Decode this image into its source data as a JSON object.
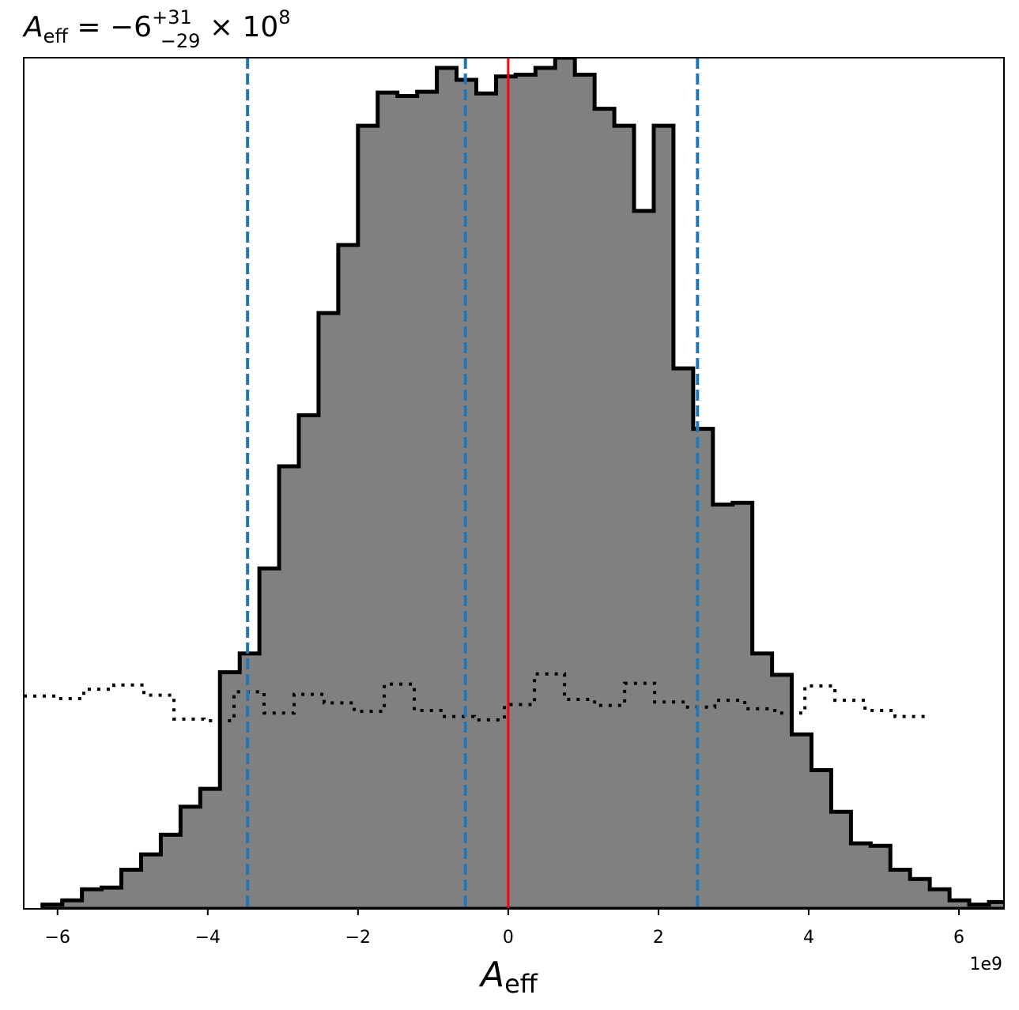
{
  "chart_data": {
    "type": "histogram",
    "title": {
      "base": "A",
      "base_sub": "eff",
      "equals": " = −6",
      "sup": "+31",
      "sub": "−29",
      "times": " × 10",
      "exp": "8"
    },
    "xlabel": {
      "base": "A",
      "sub": "eff"
    },
    "x_offset_label": "1e9",
    "x_scale": 1000000000,
    "xlim": [
      -6.45,
      6.6
    ],
    "ylim": [
      0,
      1.0
    ],
    "xticks": [
      -6,
      -4,
      -2,
      0,
      2,
      4,
      6
    ],
    "xtick_labels": [
      "−6",
      "−4",
      "−2",
      "0",
      "2",
      "4",
      "6"
    ],
    "yticks_shown": false,
    "posterior": {
      "fill_color": "#808080",
      "edge_color": "#000000",
      "bin_start": -6.2,
      "bin_width": 0.2625,
      "values": [
        0.005,
        0.01,
        0.023,
        0.025,
        0.046,
        0.064,
        0.087,
        0.12,
        0.141,
        0.278,
        0.3,
        0.4,
        0.52,
        0.58,
        0.7,
        0.78,
        0.92,
        0.959,
        0.955,
        0.96,
        0.988,
        0.974,
        0.958,
        0.978,
        0.98,
        0.988,
        1.0,
        0.98,
        0.94,
        0.92,
        0.82,
        0.92,
        0.635,
        0.564,
        0.475,
        0.477,
        0.3,
        0.275,
        0.205,
        0.163,
        0.114,
        0.077,
        0.074,
        0.046,
        0.035,
        0.023,
        0.01,
        0.005,
        0.008,
        0.004,
        0.0,
        0.0
      ]
    },
    "prior": {
      "style": "dotted",
      "color": "#000000",
      "x_start": -6.45,
      "bin_width": 0.4,
      "values": [
        0.25,
        0.247,
        0.258,
        0.263,
        0.251,
        0.223,
        0.221,
        0.255,
        0.23,
        0.252,
        0.242,
        0.232,
        0.264,
        0.233,
        0.226,
        0.222,
        0.24,
        0.276,
        0.246,
        0.239,
        0.265,
        0.243,
        0.237,
        0.245,
        0.235,
        0.23,
        0.262,
        0.245,
        0.233,
        0.226
      ]
    },
    "vlines": [
      {
        "x": -3.47,
        "color": "#1f77b4",
        "style": "dashed"
      },
      {
        "x": -0.57,
        "color": "#1f77b4",
        "style": "dashed"
      },
      {
        "x": 2.52,
        "color": "#1f77b4",
        "style": "dashed"
      },
      {
        "x": 0.0,
        "color": "#ff0000",
        "style": "solid"
      }
    ]
  }
}
